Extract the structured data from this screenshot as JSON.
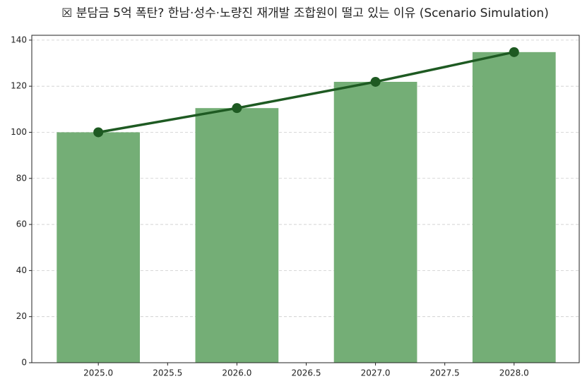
{
  "chart_data": {
    "type": "bar",
    "title": "☒ 분담금 5억 폭탄? 한남·성수·노량진 재개발 조합원이 떨고 있는 이유 (Scenario Simulation)",
    "x": [
      2025,
      2026,
      2027,
      2028
    ],
    "values": [
      100,
      110.5,
      121.9,
      134.8
    ],
    "color": "#74ae76",
    "line_color": "#1e5a22",
    "bar_width": 0.6,
    "xlim": [
      2024.52,
      2028.47
    ],
    "xticks": [
      {
        "value": 2025,
        "label": "2025.0"
      },
      2025.5,
      {
        "value": 2026,
        "label": "2026.0"
      },
      2026.5,
      {
        "value": 2027,
        "label": "2027.0"
      },
      2027.5,
      {
        "value": 2028,
        "label": "2028.0"
      }
    ],
    "ylim": [
      0,
      142.1
    ],
    "yticks": [
      0,
      20,
      40,
      60,
      80,
      100,
      120,
      140
    ],
    "grid": true
  }
}
